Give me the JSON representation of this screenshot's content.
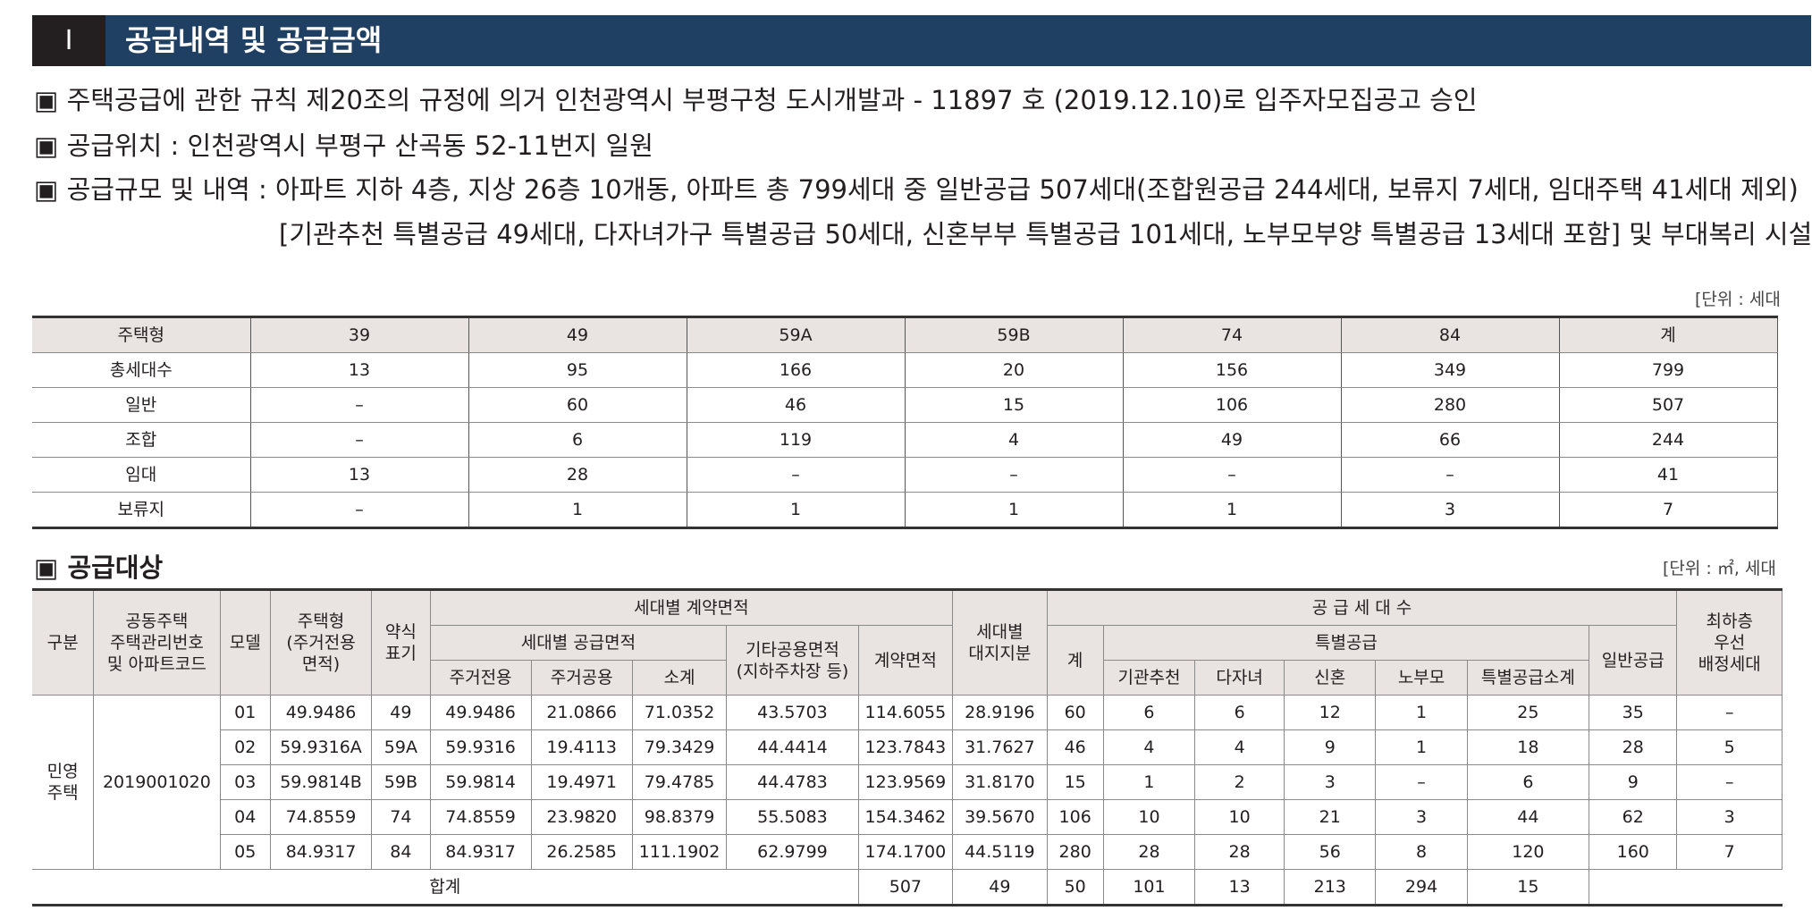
{
  "header": {
    "number": "Ⅰ",
    "title": "공급내역 및 공급금액"
  },
  "notes": [
    "▣ 주택공급에 관한 규칙 제20조의 규정에 의거 인천광역시 부평구청 도시개발과 - 11897 호 (2019.12.10)로 입주자모집공고 승인",
    "▣ 공급위치 : 인천광역시 부평구 산곡동 52-11번지 일원",
    "▣ 공급규모 및 내역 : 아파트 지하 4층, 지상 26층 10개동, 아파트 총 799세대 중 일반공급 507세대(조합원공급 244세대, 보류지 7세대, 임대주택 41세대 제외)",
    "[기관추천 특별공급 49세대, 다자녀가구 특별공급 50세대, 신혼부부 특별공급 101세대, 노부모부양 특별공급 13세대 포함] 및 부대복리 시설"
  ],
  "table1": {
    "unit": "[단위 : 세대",
    "rows": [
      [
        "주택형",
        "39",
        "49",
        "59A",
        "59B",
        "74",
        "84",
        "계"
      ],
      [
        "총세대수",
        "13",
        "95",
        "166",
        "20",
        "156",
        "349",
        "799"
      ],
      [
        "일반",
        "–",
        "60",
        "46",
        "15",
        "106",
        "280",
        "507"
      ],
      [
        "조합",
        "–",
        "6",
        "119",
        "4",
        "49",
        "66",
        "244"
      ],
      [
        "임대",
        "13",
        "28",
        "–",
        "–",
        "–",
        "–",
        "41"
      ],
      [
        "보류지",
        "–",
        "1",
        "1",
        "1",
        "1",
        "3",
        "7"
      ]
    ]
  },
  "table2": {
    "title": "▣ 공급대상",
    "unit": "[단위 : ㎡, 세대",
    "header": [
      "구분",
      "공동주택\n주택관리번호\n및 아파트코드",
      "모델",
      "주택형\n(주거전용\n면적)",
      "약식\n표기",
      "세대별 계약면적",
      "세대별\n대지지분",
      "공 급 세 대 수",
      "최하층\n우선\n배정세대",
      "세대별 공급면적",
      "기타공용면적\n(지하주차장 등)",
      "계약면적",
      "계",
      "특별공급",
      "일반공급",
      "주거전용",
      "주거공용",
      "소계",
      "기관추천",
      "다자녀",
      "신혼",
      "노부모",
      "특별공급소계"
    ],
    "category": "민영\n주택",
    "code": "2019001020",
    "rows": [
      [
        "01",
        "49.9486",
        "49",
        "49.9486",
        "21.0866",
        "71.0352",
        "43.5703",
        "114.6055",
        "28.9196",
        "60",
        "6",
        "6",
        "12",
        "1",
        "25",
        "35",
        "–"
      ],
      [
        "02",
        "59.9316A",
        "59A",
        "59.9316",
        "19.4113",
        "79.3429",
        "44.4414",
        "123.7843",
        "31.7627",
        "46",
        "4",
        "4",
        "9",
        "1",
        "18",
        "28",
        "5"
      ],
      [
        "03",
        "59.9814B",
        "59B",
        "59.9814",
        "19.4971",
        "79.4785",
        "44.4783",
        "123.9569",
        "31.8170",
        "15",
        "1",
        "2",
        "3",
        "–",
        "6",
        "9",
        "–"
      ],
      [
        "04",
        "74.8559",
        "74",
        "74.8559",
        "23.9820",
        "98.8379",
        "55.5083",
        "154.3462",
        "39.5670",
        "106",
        "10",
        "10",
        "21",
        "3",
        "44",
        "62",
        "3"
      ],
      [
        "05",
        "84.9317",
        "84",
        "84.9317",
        "26.2585",
        "111.1902",
        "62.9799",
        "174.1700",
        "44.5119",
        "280",
        "28",
        "28",
        "56",
        "8",
        "120",
        "160",
        "7"
      ]
    ],
    "total": [
      "합계",
      "507",
      "49",
      "50",
      "101",
      "13",
      "213",
      "294",
      "15"
    ]
  }
}
